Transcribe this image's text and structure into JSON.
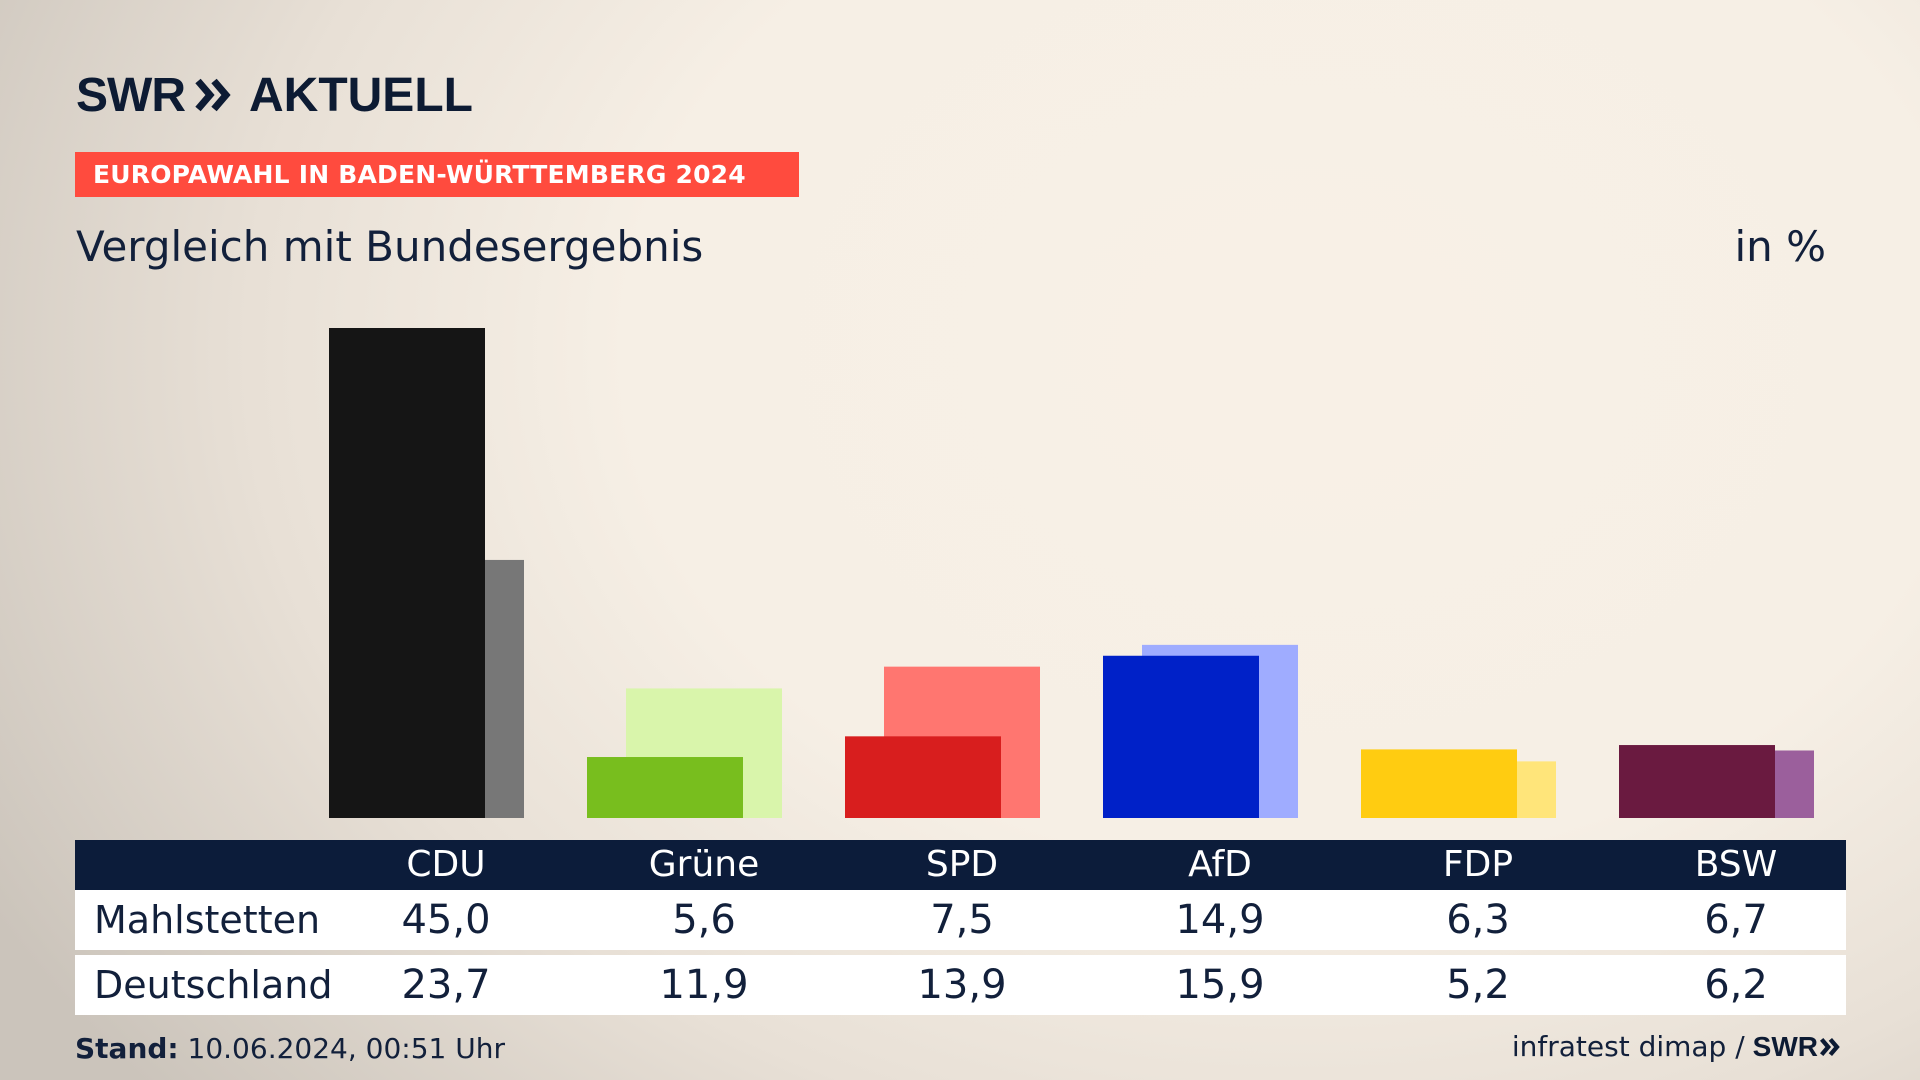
{
  "brand": {
    "logo_swr": "SWR",
    "logo_aktuell": "AKTUELL",
    "footer_logo": "SWR"
  },
  "header": {
    "banner": "EUROPAWAHL IN BADEN-WÜRTTEMBERG 2024",
    "subtitle": "Vergleich mit Bundesergebnis",
    "unit": "in %"
  },
  "table": {
    "row_labels": [
      "Mahlstetten",
      "Deutschland"
    ]
  },
  "footer": {
    "stand_label": "Stand:",
    "stand_value": "10.06.2024, 00:51 Uhr",
    "source": "infratest dimap /"
  },
  "colors": {
    "banner": "#ff4b3e",
    "header_bg": "#0c1c3a"
  },
  "chart_data": {
    "type": "bar",
    "categories": [
      "CDU",
      "Grüne",
      "SPD",
      "AfD",
      "FDP",
      "BSW"
    ],
    "series": [
      {
        "name": "Mahlstetten",
        "values": [
          45.0,
          5.6,
          7.5,
          14.9,
          6.3,
          6.7
        ]
      },
      {
        "name": "Deutschland",
        "values": [
          23.7,
          11.9,
          13.9,
          15.9,
          5.2,
          6.2
        ]
      }
    ],
    "value_labels": [
      [
        "45,0",
        "5,6",
        "7,5",
        "14,9",
        "6,3",
        "6,7"
      ],
      [
        "23,7",
        "11,9",
        "13,9",
        "15,9",
        "5,2",
        "6,2"
      ]
    ],
    "colors_local": [
      "#151515",
      "#78be1e",
      "#d81e1e",
      "#0021c8",
      "#ffcc11",
      "#6a1a40"
    ],
    "colors_national": [
      "#777777",
      "#d9f5ab",
      "#ff7670",
      "#9facff",
      "#ffe57a",
      "#9b5f9c"
    ],
    "ylim": [
      0,
      45
    ],
    "grid": false
  }
}
